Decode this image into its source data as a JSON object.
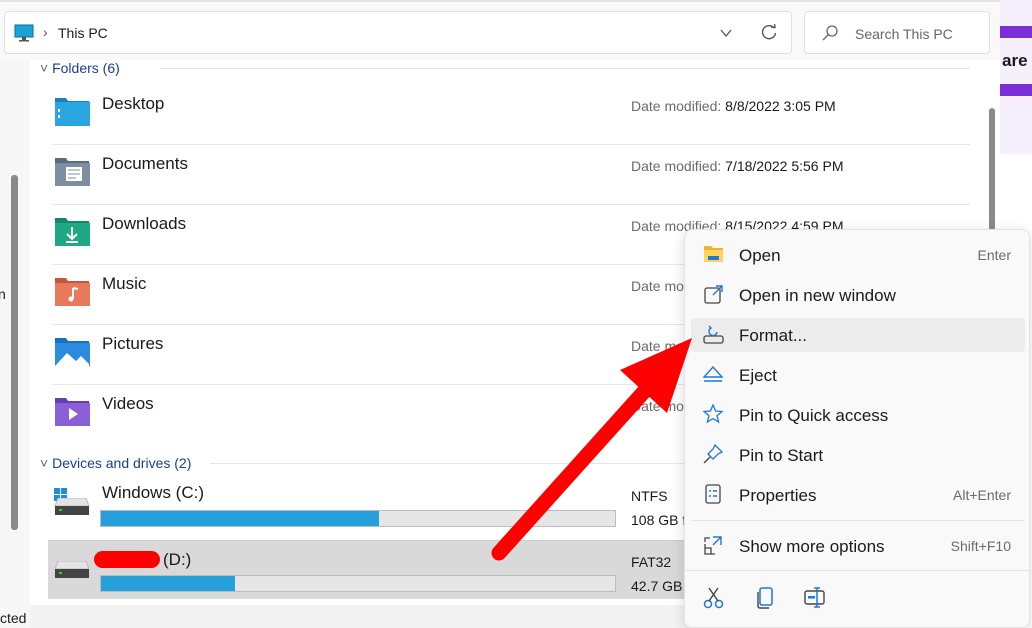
{
  "address": {
    "location": "This PC"
  },
  "search": {
    "placeholder": "Search This PC"
  },
  "left_pane": {
    "partial_text": [
      "n",
      "cted"
    ]
  },
  "right_bg": {
    "partial_text": "are"
  },
  "folders": {
    "header": "Folders (6)",
    "date_label": "Date modified:",
    "items": [
      {
        "name": "Desktop",
        "date": "8/8/2022 3:05 PM",
        "icon": "desktop-folder-icon"
      },
      {
        "name": "Documents",
        "date": "7/18/2022 5:56 PM",
        "icon": "documents-folder-icon"
      },
      {
        "name": "Downloads",
        "date": "8/15/2022 4:59 PM",
        "icon": "downloads-folder-icon"
      },
      {
        "name": "Music",
        "date": "",
        "icon": "music-folder-icon"
      },
      {
        "name": "Pictures",
        "date": "",
        "icon": "pictures-folder-icon"
      },
      {
        "name": "Videos",
        "date": "",
        "icon": "videos-folder-icon"
      }
    ]
  },
  "drives": {
    "header": "Devices and drives (2)",
    "items": [
      {
        "name": "Windows (C:)",
        "fs": "NTFS",
        "free": "108 GB f",
        "used_fraction": 0.54
      },
      {
        "name": "(D:)",
        "fs": "FAT32",
        "free": "42.7 GB",
        "used_fraction": 0.26,
        "selected": true
      }
    ]
  },
  "context_menu": {
    "items": [
      {
        "label": "Open",
        "shortcut": "Enter",
        "icon": "open-folder-icon"
      },
      {
        "label": "Open in new window",
        "shortcut": "",
        "icon": "open-new-window-icon"
      },
      {
        "label": "Format...",
        "shortcut": "",
        "icon": "format-icon",
        "hovered": true
      },
      {
        "label": "Eject",
        "shortcut": "",
        "icon": "eject-icon"
      },
      {
        "label": "Pin to Quick access",
        "shortcut": "",
        "icon": "star-icon"
      },
      {
        "label": "Pin to Start",
        "shortcut": "",
        "icon": "pin-icon"
      },
      {
        "label": "Properties",
        "shortcut": "Alt+Enter",
        "icon": "properties-icon"
      },
      {
        "label": "Show more options",
        "shortcut": "Shift+F10",
        "icon": "more-options-icon"
      }
    ],
    "bottom_icons": [
      "cut-icon",
      "copy-icon",
      "rename-icon"
    ]
  },
  "colors": {
    "accent": "#26a0da",
    "arrow": "#ff0000",
    "redaction": "#ff0000"
  }
}
